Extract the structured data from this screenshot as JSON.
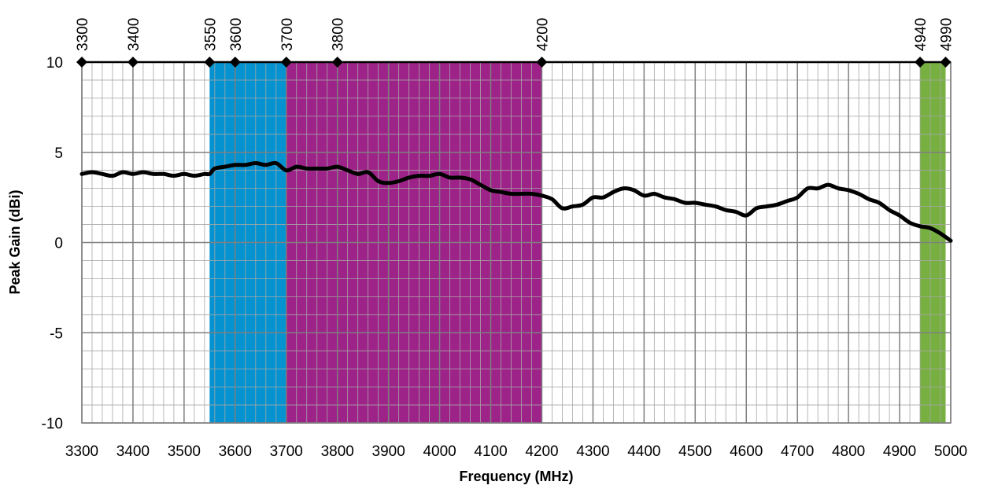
{
  "chart_data": {
    "type": "line",
    "title": "",
    "xlabel": "Frequency (MHz)",
    "ylabel": "Peak Gain (dBi)",
    "xlim": [
      3300,
      5000
    ],
    "ylim": [
      -10,
      10
    ],
    "x_ticks": [
      3300,
      3400,
      3500,
      3600,
      3700,
      3800,
      3900,
      4000,
      4100,
      4200,
      4300,
      4400,
      4500,
      4600,
      4700,
      4800,
      4900,
      5000
    ],
    "y_ticks": [
      -10,
      -5,
      0,
      5,
      10
    ],
    "grid": true,
    "legend": "none",
    "bands": [
      {
        "from": 3550,
        "to": 3700,
        "color": "#0592D0"
      },
      {
        "from": 3700,
        "to": 4200,
        "color": "#9E2389"
      },
      {
        "from": 4940,
        "to": 4990,
        "color": "#77B041"
      }
    ],
    "markers": {
      "y": 10,
      "x": [
        3300,
        3400,
        3550,
        3600,
        3700,
        3800,
        4200,
        4940,
        4990
      ],
      "labels": [
        "3300",
        "3400",
        "3550",
        "3600",
        "3700",
        "3800",
        "4200",
        "4940",
        "4990"
      ]
    },
    "series": [
      {
        "color": "#000000",
        "x": [
          3300,
          3320,
          3340,
          3360,
          3380,
          3400,
          3420,
          3440,
          3460,
          3480,
          3500,
          3520,
          3540,
          3550,
          3560,
          3580,
          3600,
          3620,
          3640,
          3660,
          3680,
          3700,
          3720,
          3740,
          3760,
          3780,
          3800,
          3820,
          3840,
          3860,
          3880,
          3900,
          3920,
          3940,
          3960,
          3980,
          4000,
          4020,
          4040,
          4060,
          4080,
          4100,
          4120,
          4140,
          4160,
          4180,
          4200,
          4220,
          4240,
          4260,
          4280,
          4300,
          4320,
          4340,
          4360,
          4380,
          4400,
          4420,
          4440,
          4460,
          4480,
          4500,
          4520,
          4540,
          4560,
          4580,
          4600,
          4620,
          4640,
          4660,
          4680,
          4700,
          4720,
          4740,
          4760,
          4780,
          4800,
          4820,
          4840,
          4860,
          4880,
          4900,
          4920,
          4940,
          4960,
          4980,
          5000
        ],
        "values": [
          3.8,
          3.9,
          3.8,
          3.7,
          3.9,
          3.8,
          3.9,
          3.8,
          3.8,
          3.7,
          3.8,
          3.7,
          3.8,
          3.8,
          4.1,
          4.2,
          4.3,
          4.3,
          4.4,
          4.3,
          4.4,
          4.0,
          4.2,
          4.1,
          4.1,
          4.1,
          4.2,
          4.0,
          3.8,
          3.9,
          3.4,
          3.3,
          3.4,
          3.6,
          3.7,
          3.7,
          3.8,
          3.6,
          3.6,
          3.5,
          3.2,
          2.9,
          2.8,
          2.7,
          2.7,
          2.7,
          2.6,
          2.4,
          1.9,
          2.0,
          2.1,
          2.5,
          2.5,
          2.8,
          3.0,
          2.9,
          2.6,
          2.7,
          2.5,
          2.4,
          2.2,
          2.2,
          2.1,
          2.0,
          1.8,
          1.7,
          1.5,
          1.9,
          2.0,
          2.1,
          2.3,
          2.5,
          3.0,
          3.0,
          3.2,
          3.0,
          2.9,
          2.7,
          2.4,
          2.2,
          1.8,
          1.5,
          1.1,
          0.9,
          0.8,
          0.5,
          0.1
        ]
      }
    ]
  }
}
